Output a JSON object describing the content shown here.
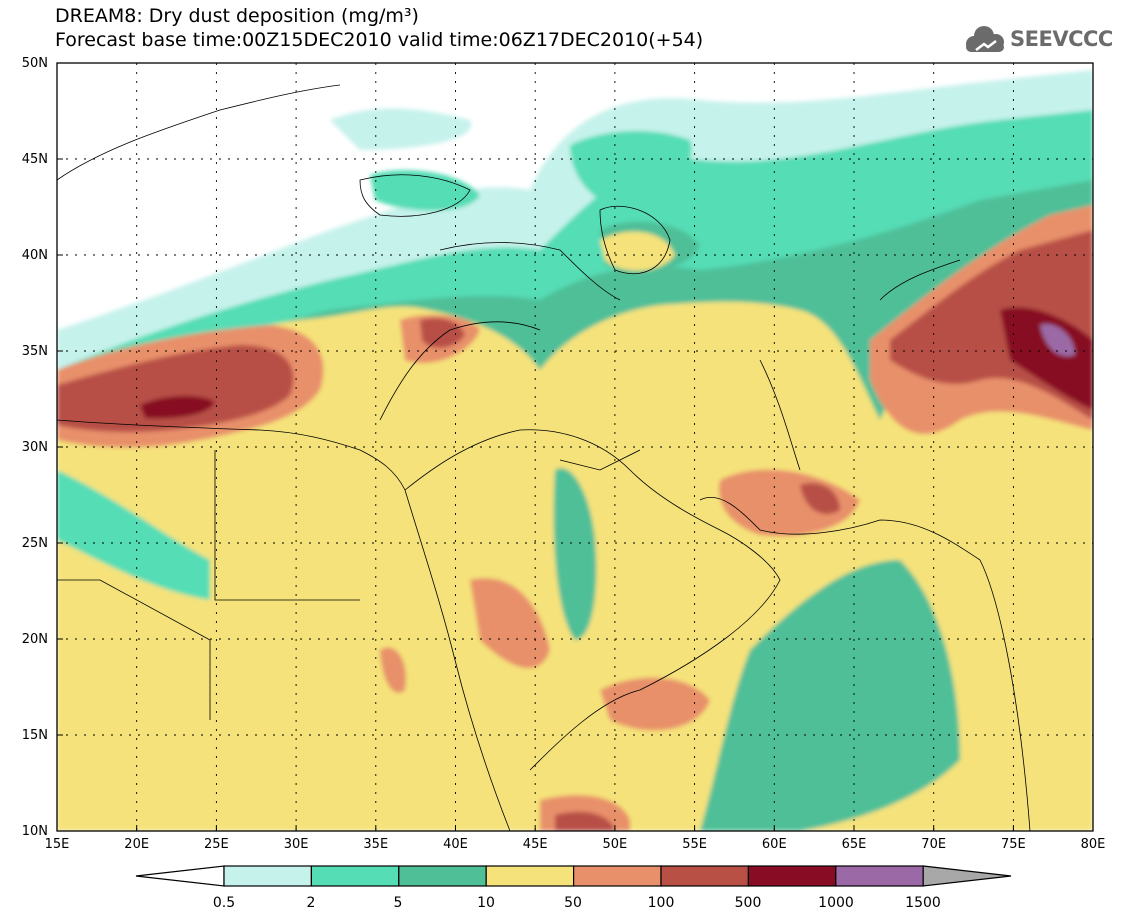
{
  "title": {
    "line1": "DREAM8: Dry dust deposition (mg/m³)",
    "line2": "Forecast base time:00Z15DEC2010 valid time:06Z17DEC2010(+54)"
  },
  "logo": {
    "text": "SEEVCCC",
    "icon": "cloud-icon"
  },
  "map": {
    "lat_labels": [
      "50N",
      "45N",
      "40N",
      "35N",
      "30N",
      "25N",
      "20N",
      "15N",
      "10N"
    ],
    "lon_labels": [
      "15E",
      "20E",
      "25E",
      "30E",
      "35E",
      "40E",
      "45E",
      "50E",
      "55E",
      "60E",
      "65E",
      "70E",
      "75E",
      "80E"
    ],
    "lat_range": [
      10,
      50
    ],
    "lon_range": [
      15,
      80
    ],
    "grid": "dotted"
  },
  "colorbar": {
    "labels": [
      "0.5",
      "2",
      "5",
      "10",
      "50",
      "100",
      "500",
      "1000",
      "1500"
    ],
    "colors": [
      "#ffffff",
      "#c6f2ec",
      "#55ddb5",
      "#4fbf98",
      "#f5e27a",
      "#e8906a",
      "#b85046",
      "#870c24",
      "#9b6aa6",
      "#a8a8a8"
    ]
  }
}
